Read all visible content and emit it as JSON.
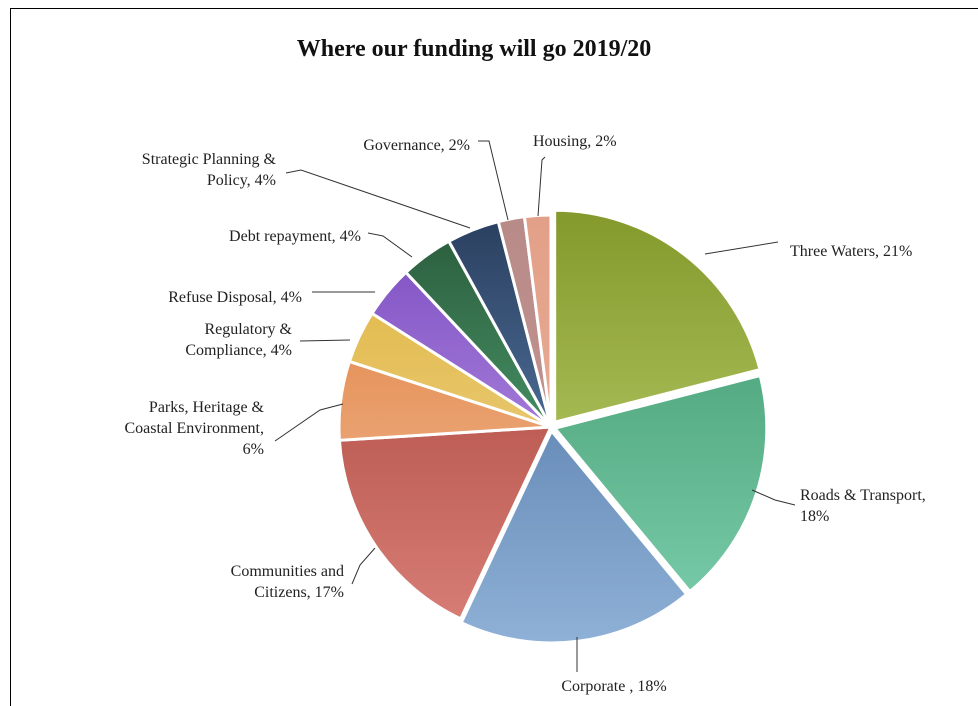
{
  "chart_data": {
    "type": "pie",
    "title": "Where our funding will go 2019/20",
    "slices": [
      {
        "label": "Three Waters, 21%",
        "value": 21,
        "color_top": "#849a2c",
        "color_bottom": "#c6d97a"
      },
      {
        "label": "Roads & Transport, 18%",
        "value": 18,
        "color_top": "#3b9467",
        "color_bottom": "#7dcfae"
      },
      {
        "label": "Corporate , 18%",
        "value": 18,
        "color_top": "#426a9b",
        "color_bottom": "#8eb0d6"
      },
      {
        "label": "Communities and Citizens, 17%",
        "value": 17,
        "color_top": "#a23b32",
        "color_bottom": "#d98078"
      },
      {
        "label": "Parks, Heritage & Coastal Environment, 6%",
        "value": 6,
        "color_top": "#e07a3a",
        "color_bottom": "#f2c5a0"
      },
      {
        "label": "Regulatory & Compliance, 4%",
        "value": 4,
        "color_top": "#dfb33c",
        "color_bottom": "#f0d999"
      },
      {
        "label": "Refuse Disposal, 4%",
        "value": 4,
        "color_top": "#7a4bc0",
        "color_bottom": "#c9a6ef"
      },
      {
        "label": "Debt repayment, 4%",
        "value": 4,
        "color_top": "#2a5a3a",
        "color_bottom": "#5dbf8a"
      },
      {
        "label": "Strategic Planning & Policy, 4%",
        "value": 4,
        "color_top": "#2a3f5f",
        "color_bottom": "#6a93c4"
      },
      {
        "label": "Governance, 2%",
        "value": 2,
        "color_top": "#b88a88",
        "color_bottom": "#c99a96"
      },
      {
        "label": "Housing, 2%",
        "value": 2,
        "color_top": "#e3a088",
        "color_bottom": "#eab29c"
      }
    ],
    "legend": "none",
    "label_lines": [
      [
        "Three Waters, 21%"
      ],
      [
        "Roads & Transport,",
        "18%"
      ],
      [
        "Corporate , 18%"
      ],
      [
        "Communities and",
        "Citizens, 17%"
      ],
      [
        "Parks, Heritage &",
        "Coastal Environment,",
        "6%"
      ],
      [
        "Regulatory &",
        "Compliance, 4%"
      ],
      [
        "Refuse Disposal, 4%"
      ],
      [
        "Debt repayment, 4%"
      ],
      [
        "Strategic Planning &",
        "Policy, 4%"
      ],
      [
        "Governance, 2%"
      ],
      [
        "Housing, 2%"
      ]
    ]
  }
}
